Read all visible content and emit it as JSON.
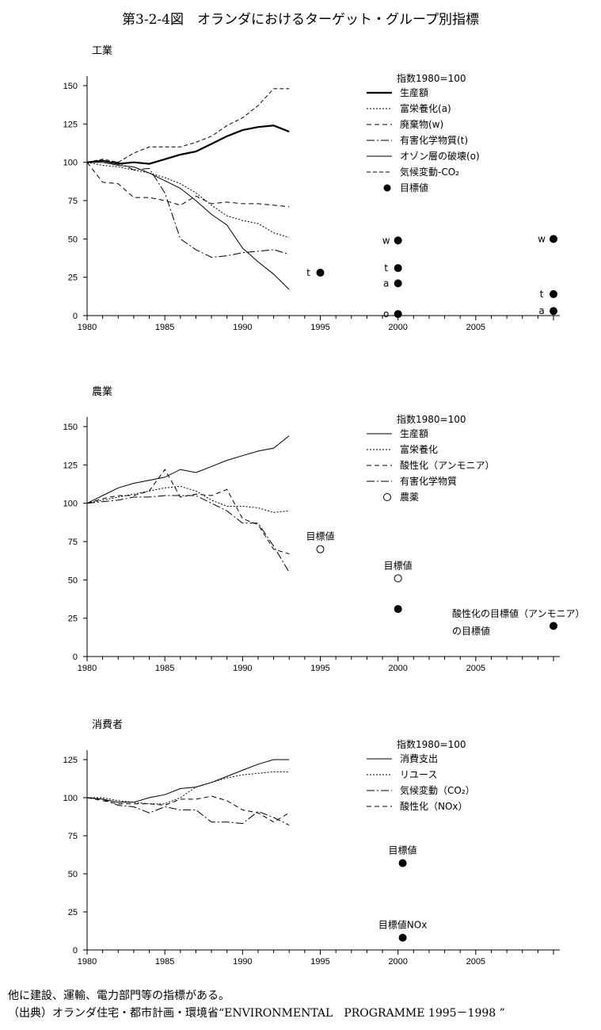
{
  "title": "第3-2-4図　オランダにおけるターゲット・グループ別指標",
  "footer": {
    "note": "他に建設、運輸、電力部門等の指標がある。",
    "source": "（出典）オランダ住宅・都市計画・環境省“ENVIRONMENTAL　PROGRAMME 1995－1998 ”"
  },
  "chart_data": [
    {
      "type": "line",
      "title": "工業",
      "xlim": [
        1980,
        2010
      ],
      "xticks": [
        1980,
        1985,
        1990,
        1995,
        2000,
        2005
      ],
      "ylim": [
        0,
        150
      ],
      "yticks": [
        0,
        25,
        50,
        75,
        100,
        125,
        150
      ],
      "legend_header": "指数1980=100",
      "series": [
        {
          "name": "生産額",
          "style": "thick",
          "x": [
            1980,
            1981,
            1982,
            1983,
            1984,
            1985,
            1986,
            1987,
            1988,
            1989,
            1990,
            1991,
            1992,
            1993
          ],
          "values": [
            100,
            101,
            99,
            100,
            99,
            102,
            105,
            107,
            112,
            117,
            121,
            123,
            124,
            120
          ]
        },
        {
          "name": "富栄養化(a)",
          "style": "dotted",
          "x": [
            1980,
            1981,
            1982,
            1983,
            1984,
            1985,
            1986,
            1987,
            1988,
            1989,
            1990,
            1991,
            1992,
            1993
          ],
          "values": [
            100,
            98,
            97,
            95,
            93,
            90,
            86,
            80,
            72,
            65,
            62,
            60,
            54,
            51
          ]
        },
        {
          "name": "廃棄物(w)",
          "style": "dashed",
          "x": [
            1980,
            1981,
            1982,
            1983,
            1984,
            1985,
            1986,
            1987,
            1988,
            1989,
            1990,
            1991,
            1992,
            1993
          ],
          "values": [
            100,
            87,
            86,
            77,
            77,
            75,
            72,
            78,
            73,
            74,
            73,
            73,
            72,
            71
          ]
        },
        {
          "name": "有害化学物質(t)",
          "style": "dashdot",
          "x": [
            1980,
            1981,
            1982,
            1983,
            1984,
            1985,
            1986,
            1987,
            1988,
            1989,
            1990,
            1991,
            1992,
            1993
          ],
          "values": [
            100,
            101,
            100,
            95,
            96,
            80,
            50,
            43,
            38,
            39,
            41,
            42,
            43,
            40
          ]
        },
        {
          "name": "オゾン層の破壊(o)",
          "style": "thin",
          "x": [
            1980,
            1981,
            1982,
            1983,
            1984,
            1985,
            1986,
            1987,
            1988,
            1989,
            1990,
            1991,
            1992,
            1993
          ],
          "values": [
            100,
            100,
            98,
            97,
            93,
            88,
            83,
            75,
            66,
            59,
            44,
            35,
            27,
            17
          ]
        },
        {
          "name": "気候変動-CO₂",
          "style": "dashed2",
          "x": [
            1980,
            1981,
            1982,
            1983,
            1984,
            1985,
            1986,
            1987,
            1988,
            1989,
            1990,
            1991,
            1992,
            1993
          ],
          "values": [
            100,
            102,
            100,
            106,
            110,
            110,
            110,
            113,
            117,
            124,
            129,
            137,
            148,
            148
          ]
        }
      ],
      "targets_legend": "目標値",
      "targets": [
        {
          "x": 1995,
          "y": 28,
          "label": "t",
          "filled": true
        },
        {
          "x": 2000,
          "y": 49,
          "label": "w",
          "filled": true
        },
        {
          "x": 2000,
          "y": 31,
          "label": "t",
          "filled": true
        },
        {
          "x": 2000,
          "y": 21,
          "label": "a",
          "filled": true
        },
        {
          "x": 2000,
          "y": 1,
          "label": "o",
          "filled": true
        },
        {
          "x": 2010,
          "y": 50,
          "label": "w",
          "filled": true
        },
        {
          "x": 2010,
          "y": 14,
          "label": "t",
          "filled": true
        },
        {
          "x": 2010,
          "y": 3,
          "label": "a",
          "filled": true
        }
      ]
    },
    {
      "type": "line",
      "title": "農業",
      "xlim": [
        1980,
        2010
      ],
      "xticks": [
        1980,
        1985,
        1990,
        1995,
        2000,
        2005
      ],
      "ylim": [
        0,
        150
      ],
      "yticks": [
        0,
        25,
        50,
        75,
        100,
        125,
        150
      ],
      "legend_header": "指数1980=100",
      "series": [
        {
          "name": "生産額",
          "style": "thin",
          "x": [
            1980,
            1981,
            1982,
            1983,
            1984,
            1985,
            1986,
            1987,
            1988,
            1989,
            1990,
            1991,
            1992,
            1993
          ],
          "values": [
            100,
            105,
            110,
            113,
            115,
            117,
            122,
            120,
            124,
            128,
            131,
            134,
            136,
            144
          ]
        },
        {
          "name": "富栄養化",
          "style": "dotted",
          "x": [
            1980,
            1981,
            1982,
            1983,
            1984,
            1985,
            1986,
            1987,
            1988,
            1989,
            1990,
            1991,
            1992,
            1993
          ],
          "values": [
            100,
            102,
            104,
            106,
            108,
            110,
            111,
            108,
            102,
            98,
            98,
            97,
            94,
            95
          ]
        },
        {
          "name": "酸性化（アンモニア）",
          "style": "dashed",
          "x": [
            1980,
            1981,
            1982,
            1983,
            1984,
            1985,
            1986,
            1987,
            1988,
            1989,
            1990,
            1991,
            1992,
            1993
          ],
          "values": [
            100,
            103,
            105,
            105,
            108,
            122,
            104,
            106,
            105,
            109,
            90,
            86,
            70,
            67
          ]
        },
        {
          "name": "有害化学物質",
          "style": "dashdot",
          "x": [
            1980,
            1981,
            1982,
            1983,
            1984,
            1985,
            1986,
            1987,
            1988,
            1989,
            1990,
            1991,
            1992,
            1993
          ],
          "values": [
            100,
            101,
            102,
            104,
            104,
            105,
            105,
            105,
            100,
            95,
            87,
            87,
            72,
            55
          ]
        }
      ],
      "open_marker_legend": "農薬",
      "targets": [
        {
          "x": 1995,
          "y": 70,
          "label": "目標値",
          "filled": false
        },
        {
          "x": 2000,
          "y": 51,
          "label": "目標値",
          "filled": false
        },
        {
          "x": 2000,
          "y": 31,
          "label": "",
          "filled": true
        },
        {
          "x": 2010,
          "y": 20,
          "label": "",
          "filled": true
        }
      ],
      "annotation": {
        "line1": "酸性化の目標値（アンモニア）",
        "line2": "の目標値"
      }
    },
    {
      "type": "line",
      "title": "消費者",
      "xlim": [
        1980,
        2010
      ],
      "xticks": [
        1980,
        1985,
        1990,
        1995,
        2000,
        2005
      ],
      "ylim": [
        0,
        125
      ],
      "yticks": [
        0,
        25,
        50,
        75,
        100,
        125
      ],
      "legend_header": "指数1980=100",
      "series": [
        {
          "name": "消費支出",
          "style": "thin",
          "x": [
            1980,
            1981,
            1982,
            1983,
            1984,
            1985,
            1986,
            1987,
            1988,
            1989,
            1990,
            1991,
            1992,
            1993
          ],
          "values": [
            100,
            99,
            97,
            97,
            100,
            102,
            106,
            107,
            110,
            114,
            118,
            122,
            125,
            125
          ]
        },
        {
          "name": "リユース",
          "style": "dotted",
          "x": [
            1980,
            1981,
            1982,
            1983,
            1984,
            1985,
            1986,
            1987,
            1988,
            1989,
            1990,
            1991,
            1992,
            1993
          ],
          "values": [
            100,
            100,
            98,
            97,
            96,
            96,
            100,
            107,
            110,
            113,
            115,
            116,
            117,
            117
          ]
        },
        {
          "name": "気候変動（CO₂）",
          "style": "dashdot",
          "x": [
            1980,
            1981,
            1982,
            1983,
            1984,
            1985,
            1986,
            1987,
            1988,
            1989,
            1990,
            1991,
            1992,
            1993
          ],
          "values": [
            100,
            99,
            95,
            94,
            90,
            94,
            92,
            92,
            84,
            84,
            83,
            91,
            87,
            82
          ]
        },
        {
          "name": "酸性化（NOx）",
          "style": "dashed",
          "x": [
            1980,
            1981,
            1982,
            1983,
            1984,
            1985,
            1986,
            1987,
            1988,
            1989,
            1990,
            1991,
            1992,
            1993
          ],
          "values": [
            100,
            98,
            96,
            96,
            96,
            95,
            99,
            99,
            101,
            98,
            92,
            90,
            84,
            90
          ]
        }
      ],
      "targets": [
        {
          "x": 2000.3,
          "y": 57,
          "label": "目標値",
          "filled": true
        },
        {
          "x": 2000.3,
          "y": 8,
          "label": "目標値NOx",
          "filled": true
        }
      ]
    }
  ]
}
